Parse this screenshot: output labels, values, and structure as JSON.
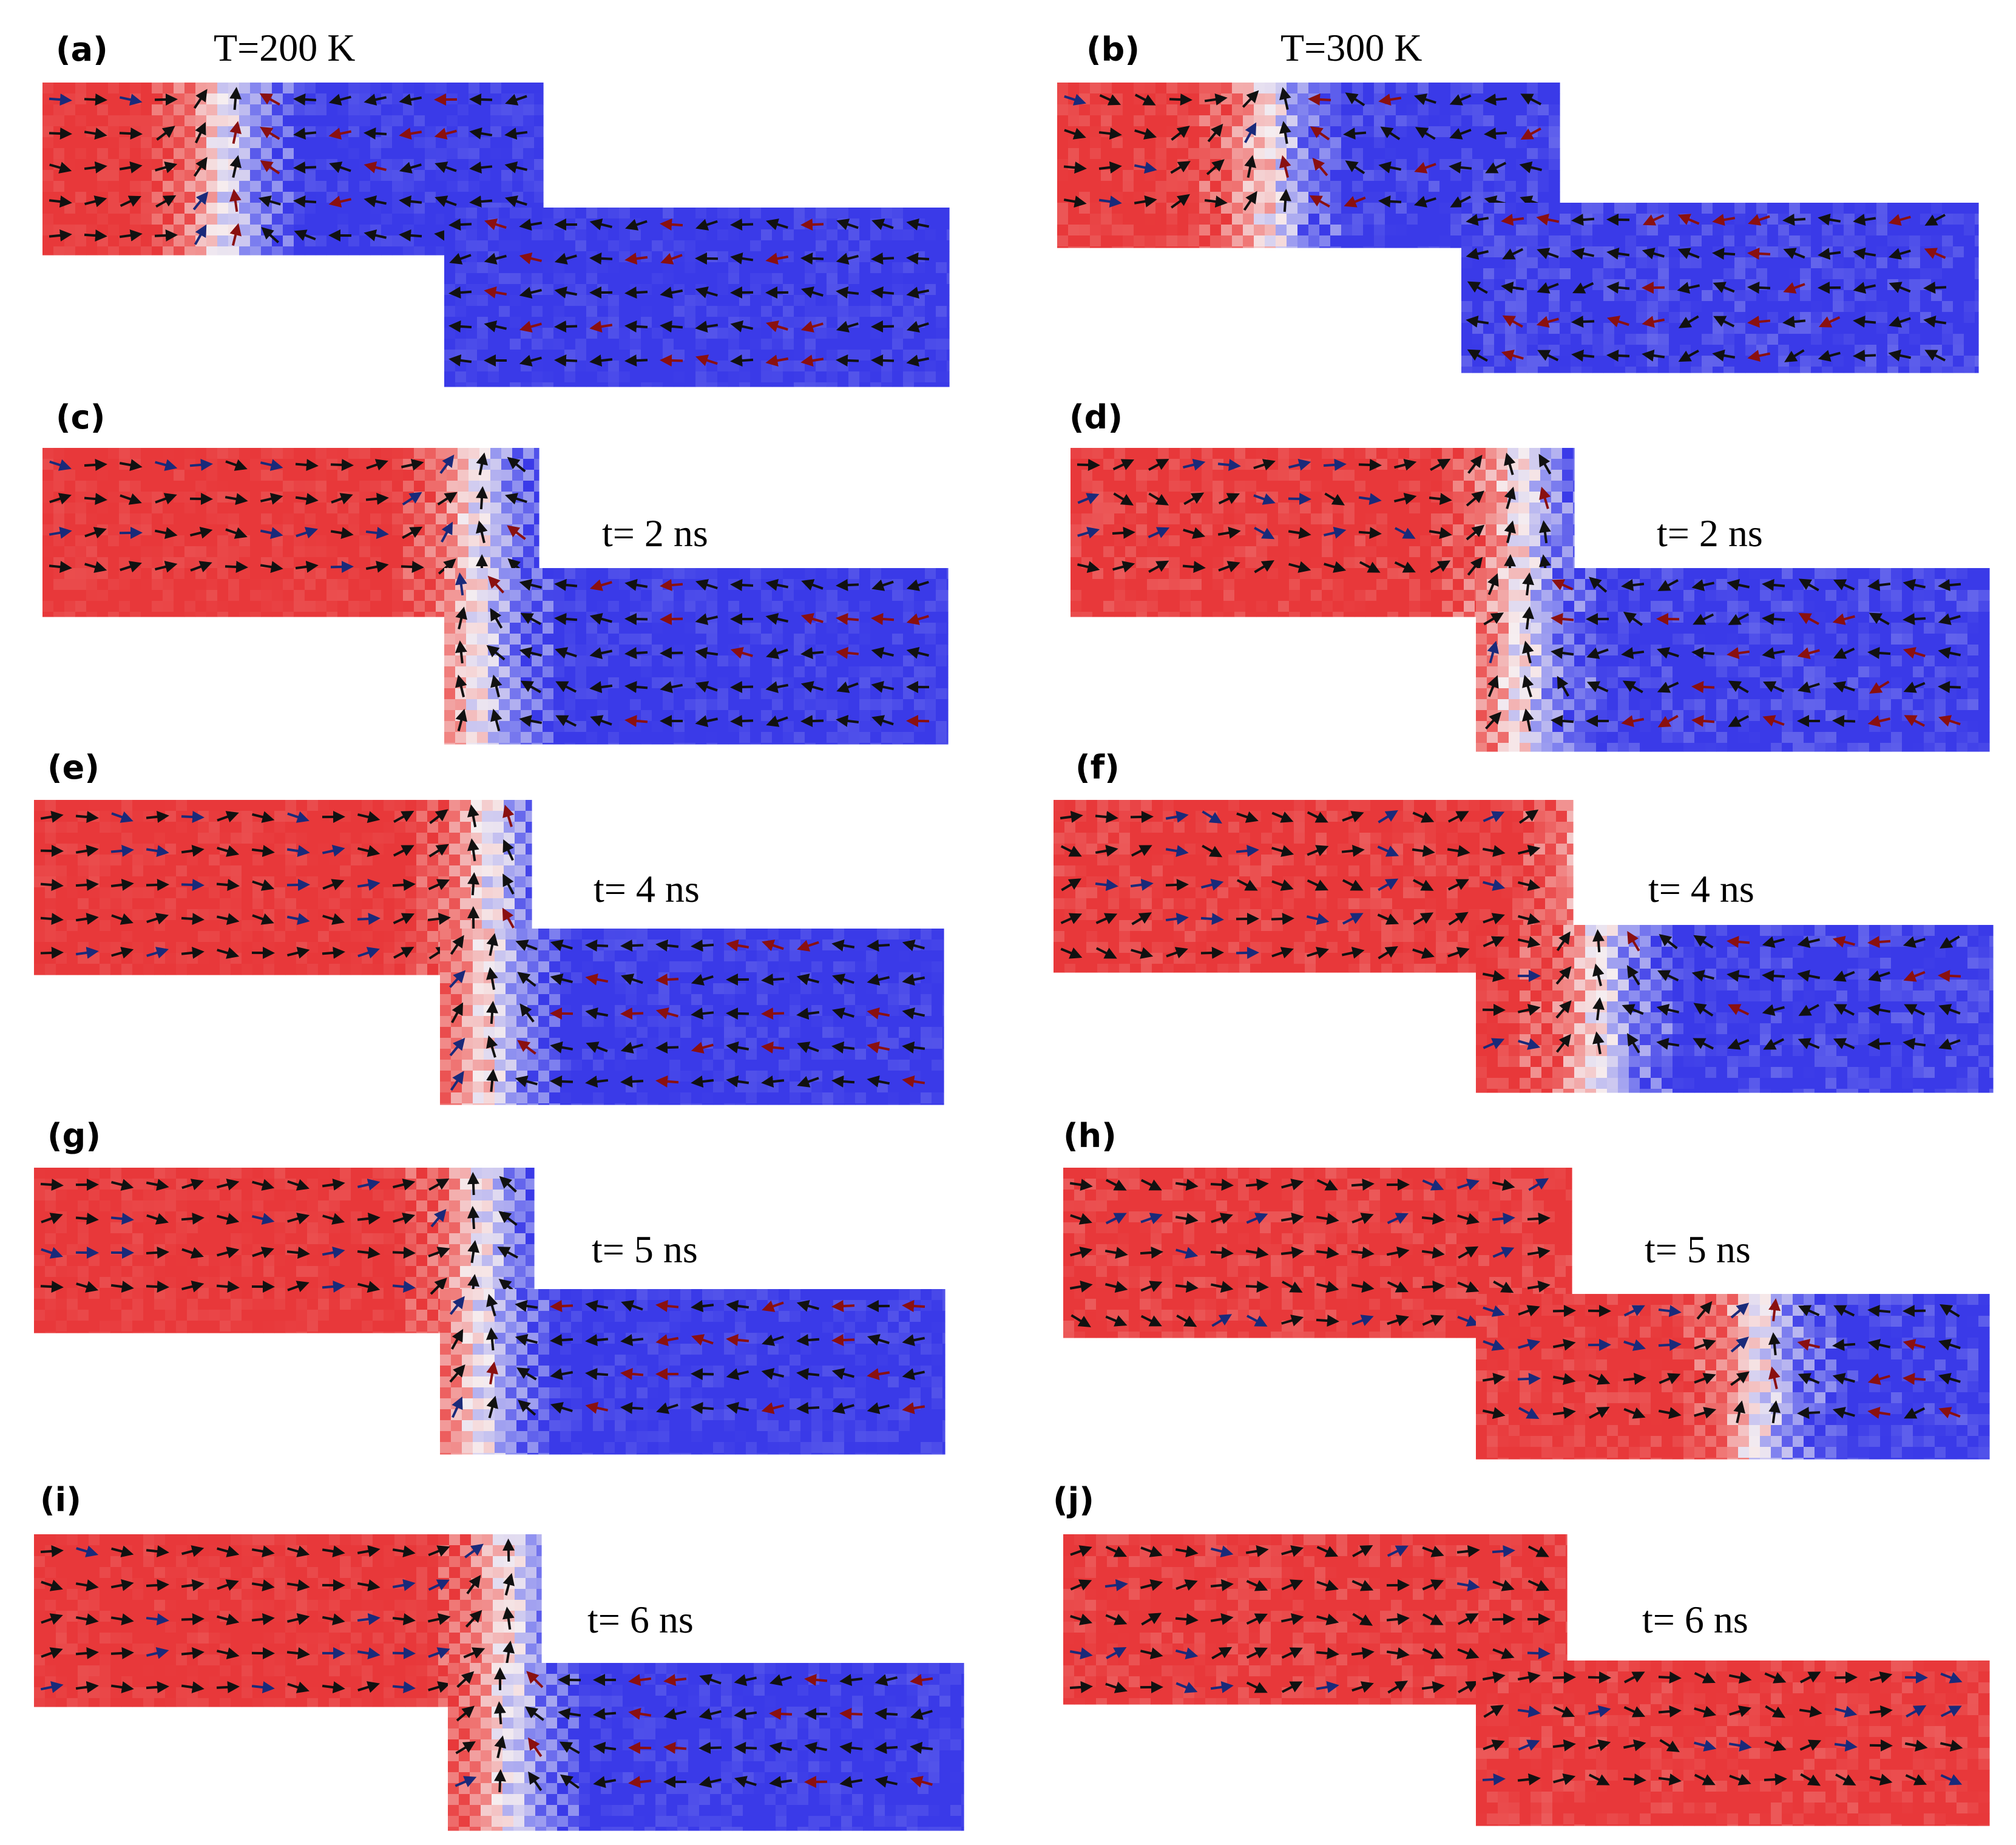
{
  "colors": {
    "red": "#e8383a",
    "red_light": "#f07a78",
    "white": "#f6eef0",
    "blue_light": "#8a8cf0",
    "blue": "#3a3ae8",
    "arrow_black": "#111111",
    "arrow_navy": "#1a2a7a",
    "arrow_maroon": "#8a1010"
  },
  "panels": [
    {
      "label": "(a)",
      "caption": "T=200 K",
      "wall": 0.2,
      "direction": "left",
      "noise": "low"
    },
    {
      "label": "(b)",
      "caption": "T=300 K",
      "wall": 0.23,
      "direction": "left",
      "noise": "high"
    },
    {
      "label": "(c)",
      "caption": "t= 2 ns",
      "wall": 0.48,
      "direction": "left",
      "noise": "low"
    },
    {
      "label": "(d)",
      "caption": "t= 2 ns",
      "wall": 0.49,
      "direction": "left",
      "noise": "high"
    },
    {
      "label": "(e)",
      "caption": "t= 4 ns",
      "wall": 0.5,
      "direction": "left",
      "noise": "low"
    },
    {
      "label": "(f)",
      "caption": "t= 4 ns",
      "wall": 0.58,
      "direction": "left",
      "noise": "high"
    },
    {
      "label": "(g)",
      "caption": "t= 5 ns",
      "wall": 0.49,
      "direction": "left",
      "noise": "low"
    },
    {
      "label": "(h)",
      "caption": "t= 5 ns",
      "wall": 0.75,
      "direction": "left",
      "noise": "high"
    },
    {
      "label": "(i)",
      "caption": "t= 6 ns",
      "wall": 0.51,
      "direction": "left",
      "noise": "low"
    },
    {
      "label": "(j)",
      "caption": "t= 6 ns",
      "wall": 1.3,
      "direction": "left",
      "noise": "high"
    }
  ]
}
